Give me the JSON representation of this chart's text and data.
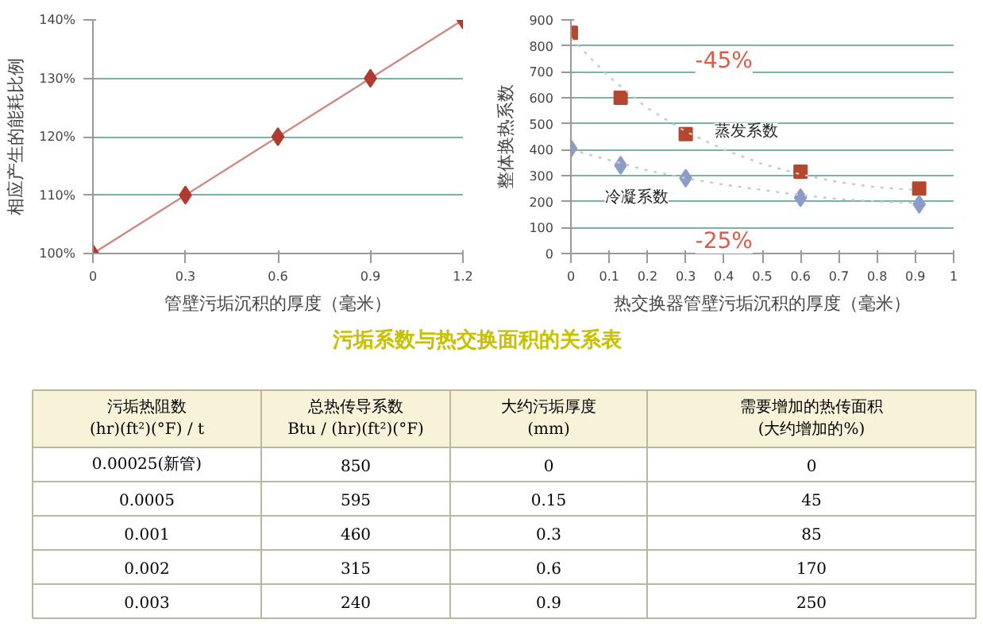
{
  "chart_data": [
    {
      "type": "line",
      "x": [
        0,
        0.3,
        0.6,
        0.9,
        1.2
      ],
      "xlabel": "管壁污垢沉积的厚度（毫米）",
      "ylabel": "相应产生的能耗比例",
      "marker": "diamond",
      "grid": "y",
      "series": [
        {
          "color": "#b03a2e",
          "values": [
            100,
            110,
            120,
            130,
            140
          ]
        }
      ],
      "xlim": [
        0,
        1.2
      ],
      "xticks": [
        0,
        0.3,
        0.6,
        0.9,
        1.2
      ],
      "ylim": [
        100,
        140
      ],
      "yticks": [
        {
          "value": 100,
          "label": "100%"
        },
        {
          "value": 110,
          "label": "110%"
        },
        {
          "value": 120,
          "label": "120%"
        },
        {
          "value": 130,
          "label": "130%"
        },
        {
          "value": 140,
          "label": "140%"
        }
      ]
    },
    {
      "type": "scatter",
      "xlabel": "热交换器管壁污垢沉积的厚度（毫米）",
      "ylabel": "整体换热系数",
      "grid": "y",
      "series": [
        {
          "name": "蒸发系数",
          "color": "#b5472e",
          "marker": "square",
          "x": [
            0,
            0.13,
            0.3,
            0.6,
            0.91
          ],
          "values": [
            850,
            600,
            460,
            315,
            250
          ]
        },
        {
          "name": "冷凝系数",
          "color": "#8c9cc8",
          "marker": "diamond",
          "x": [
            0,
            0.13,
            0.3,
            0.6,
            0.91
          ],
          "values": [
            405,
            340,
            290,
            215,
            190
          ]
        },
        {
          "type": "line",
          "color": "#c8c8c8",
          "line_style": "dotted",
          "x": [
            0,
            0.1,
            0.2,
            0.3,
            0.4,
            0.5,
            0.6,
            0.7,
            0.8,
            0.9
          ],
          "values": [
            830,
            680,
            560,
            470,
            400,
            345,
            305,
            275,
            255,
            245
          ]
        },
        {
          "type": "line",
          "color": "#c8c8c8",
          "line_style": "dotted",
          "x": [
            0,
            0.1,
            0.2,
            0.3,
            0.4,
            0.5,
            0.6,
            0.7,
            0.8,
            0.9
          ],
          "values": [
            400,
            360,
            320,
            290,
            265,
            245,
            225,
            210,
            200,
            195
          ]
        }
      ],
      "xlim": [
        0,
        1
      ],
      "xticks": [
        0,
        0.1,
        0.2,
        0.3,
        0.4,
        0.5,
        0.6,
        0.7,
        0.8,
        0.9,
        1
      ],
      "ylim": [
        0,
        900
      ],
      "yticks": [
        0,
        100,
        200,
        300,
        400,
        500,
        600,
        700,
        800,
        900
      ],
      "annotations": [
        "-45%",
        "-25%"
      ]
    },
    {
      "type": "other",
      "title": "污垢系数与热交换面积的关系表",
      "categories": [
        "污垢热阻数\n(hr)(ft²)(°F) / t",
        "总热传导系数\nBtu / (hr)(ft²)(°F)",
        "大约污垢厚度\n(mm)",
        "需要增加的热传面积\n(大约增加的%)"
      ],
      "annotations": [
        "0.00025(新管)",
        "850",
        "0",
        "0",
        "0.0005",
        "595",
        "0.15",
        "45",
        "0.001",
        "460",
        "0.3",
        "85",
        "0.002",
        "315",
        "0.6",
        "170",
        "0.003",
        "240",
        "0.9",
        "250"
      ]
    }
  ]
}
